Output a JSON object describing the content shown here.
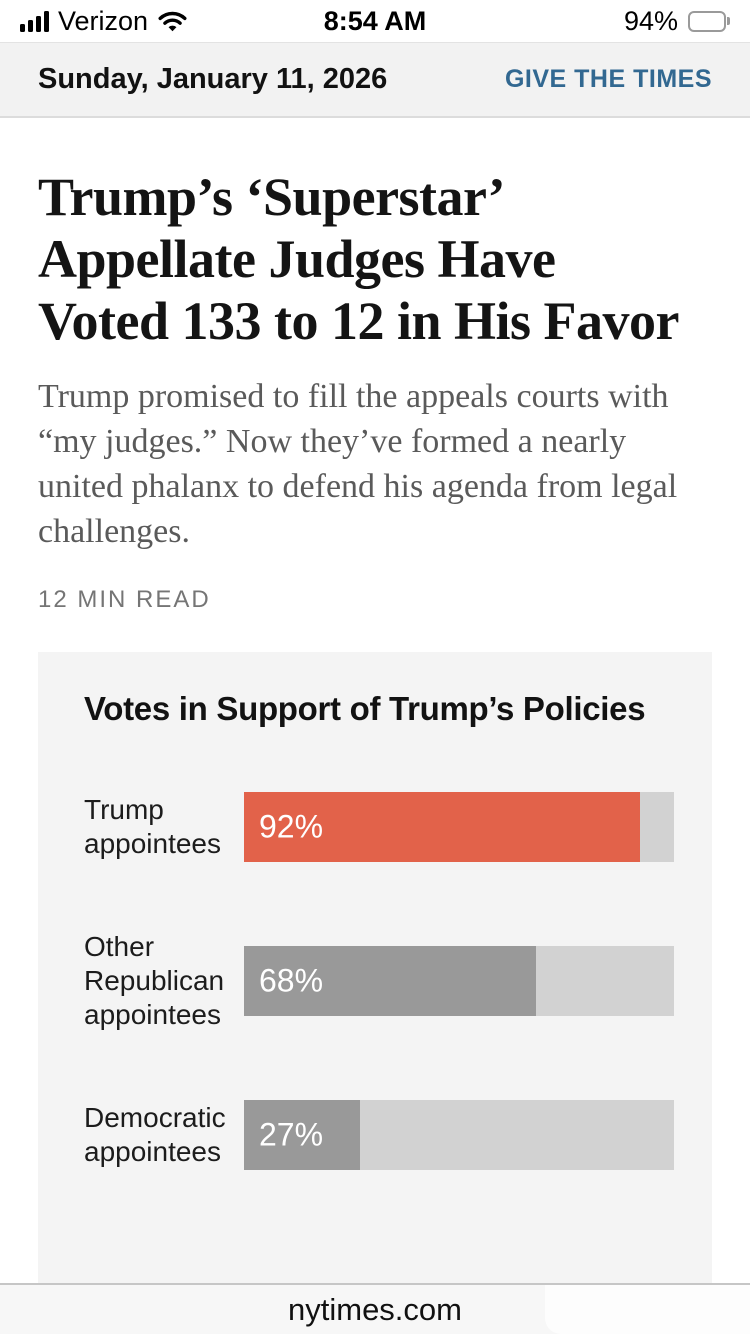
{
  "status_bar": {
    "carrier": "Verizon",
    "time": "8:54 AM",
    "battery_percent": "94%"
  },
  "header": {
    "date": "Sunday, January 11, 2026",
    "cta_label": "GIVE THE TIMES",
    "cta_color": "#326891"
  },
  "article": {
    "headline_lines": [
      "Trump’s ‘Superstar’",
      "Appellate Judges Have",
      "Voted 133 to 12 in His Favor"
    ],
    "summary_lines": [
      "Trump promised to fill the appeals courts with",
      "“my judges.” Now they’ve formed a nearly",
      "united phalanx to defend his agenda from legal",
      "challenges."
    ],
    "read_time": "12 MIN READ"
  },
  "chart_data": {
    "type": "bar",
    "orientation": "horizontal",
    "title": "Votes in Support of Trump’s Policies",
    "categories": [
      "Trump appointees",
      "Other Republican appointees",
      "Democratic appointees"
    ],
    "values": [
      92,
      68,
      27
    ],
    "value_labels": [
      "92%",
      "68%",
      "27%"
    ],
    "bar_colors": [
      "#e2624a",
      "#999999",
      "#999999"
    ],
    "track_color": "#d2d2d2",
    "background": "#f4f4f4",
    "xlim": [
      0,
      100
    ],
    "value_label_position": "inside-left",
    "grid": false,
    "legend": false
  },
  "footer": {
    "url": "nytimes.com"
  }
}
